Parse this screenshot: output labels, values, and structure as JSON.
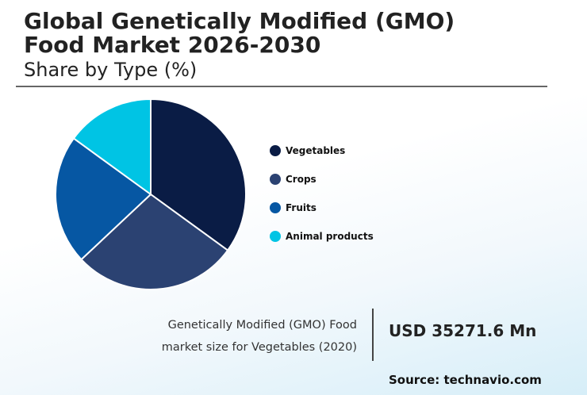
{
  "header": {
    "title_line1": "Global Genetically Modified (GMO)",
    "title_line2": "Food Market 2026-2030",
    "subtitle": "Share by Type (%)"
  },
  "chart_data": {
    "type": "pie",
    "title": "Global Genetically Modified (GMO) Food Market 2026-2030",
    "subtitle": "Share by Type (%)",
    "categories": [
      "Vegetables",
      "Crops",
      "Fruits",
      "Animal products"
    ],
    "values": [
      35,
      28,
      22,
      15
    ],
    "colors": [
      "#0a1c45",
      "#2b4272",
      "#0657a3",
      "#00c4e4"
    ],
    "legend_position": "right"
  },
  "callout": {
    "caption_line1": "Genetically Modified (GMO) Food",
    "caption_line2": "market size for Vegetables (2020)",
    "value": "USD 35271.6 Mn"
  },
  "footer": {
    "source": "Source: technavio.com"
  }
}
